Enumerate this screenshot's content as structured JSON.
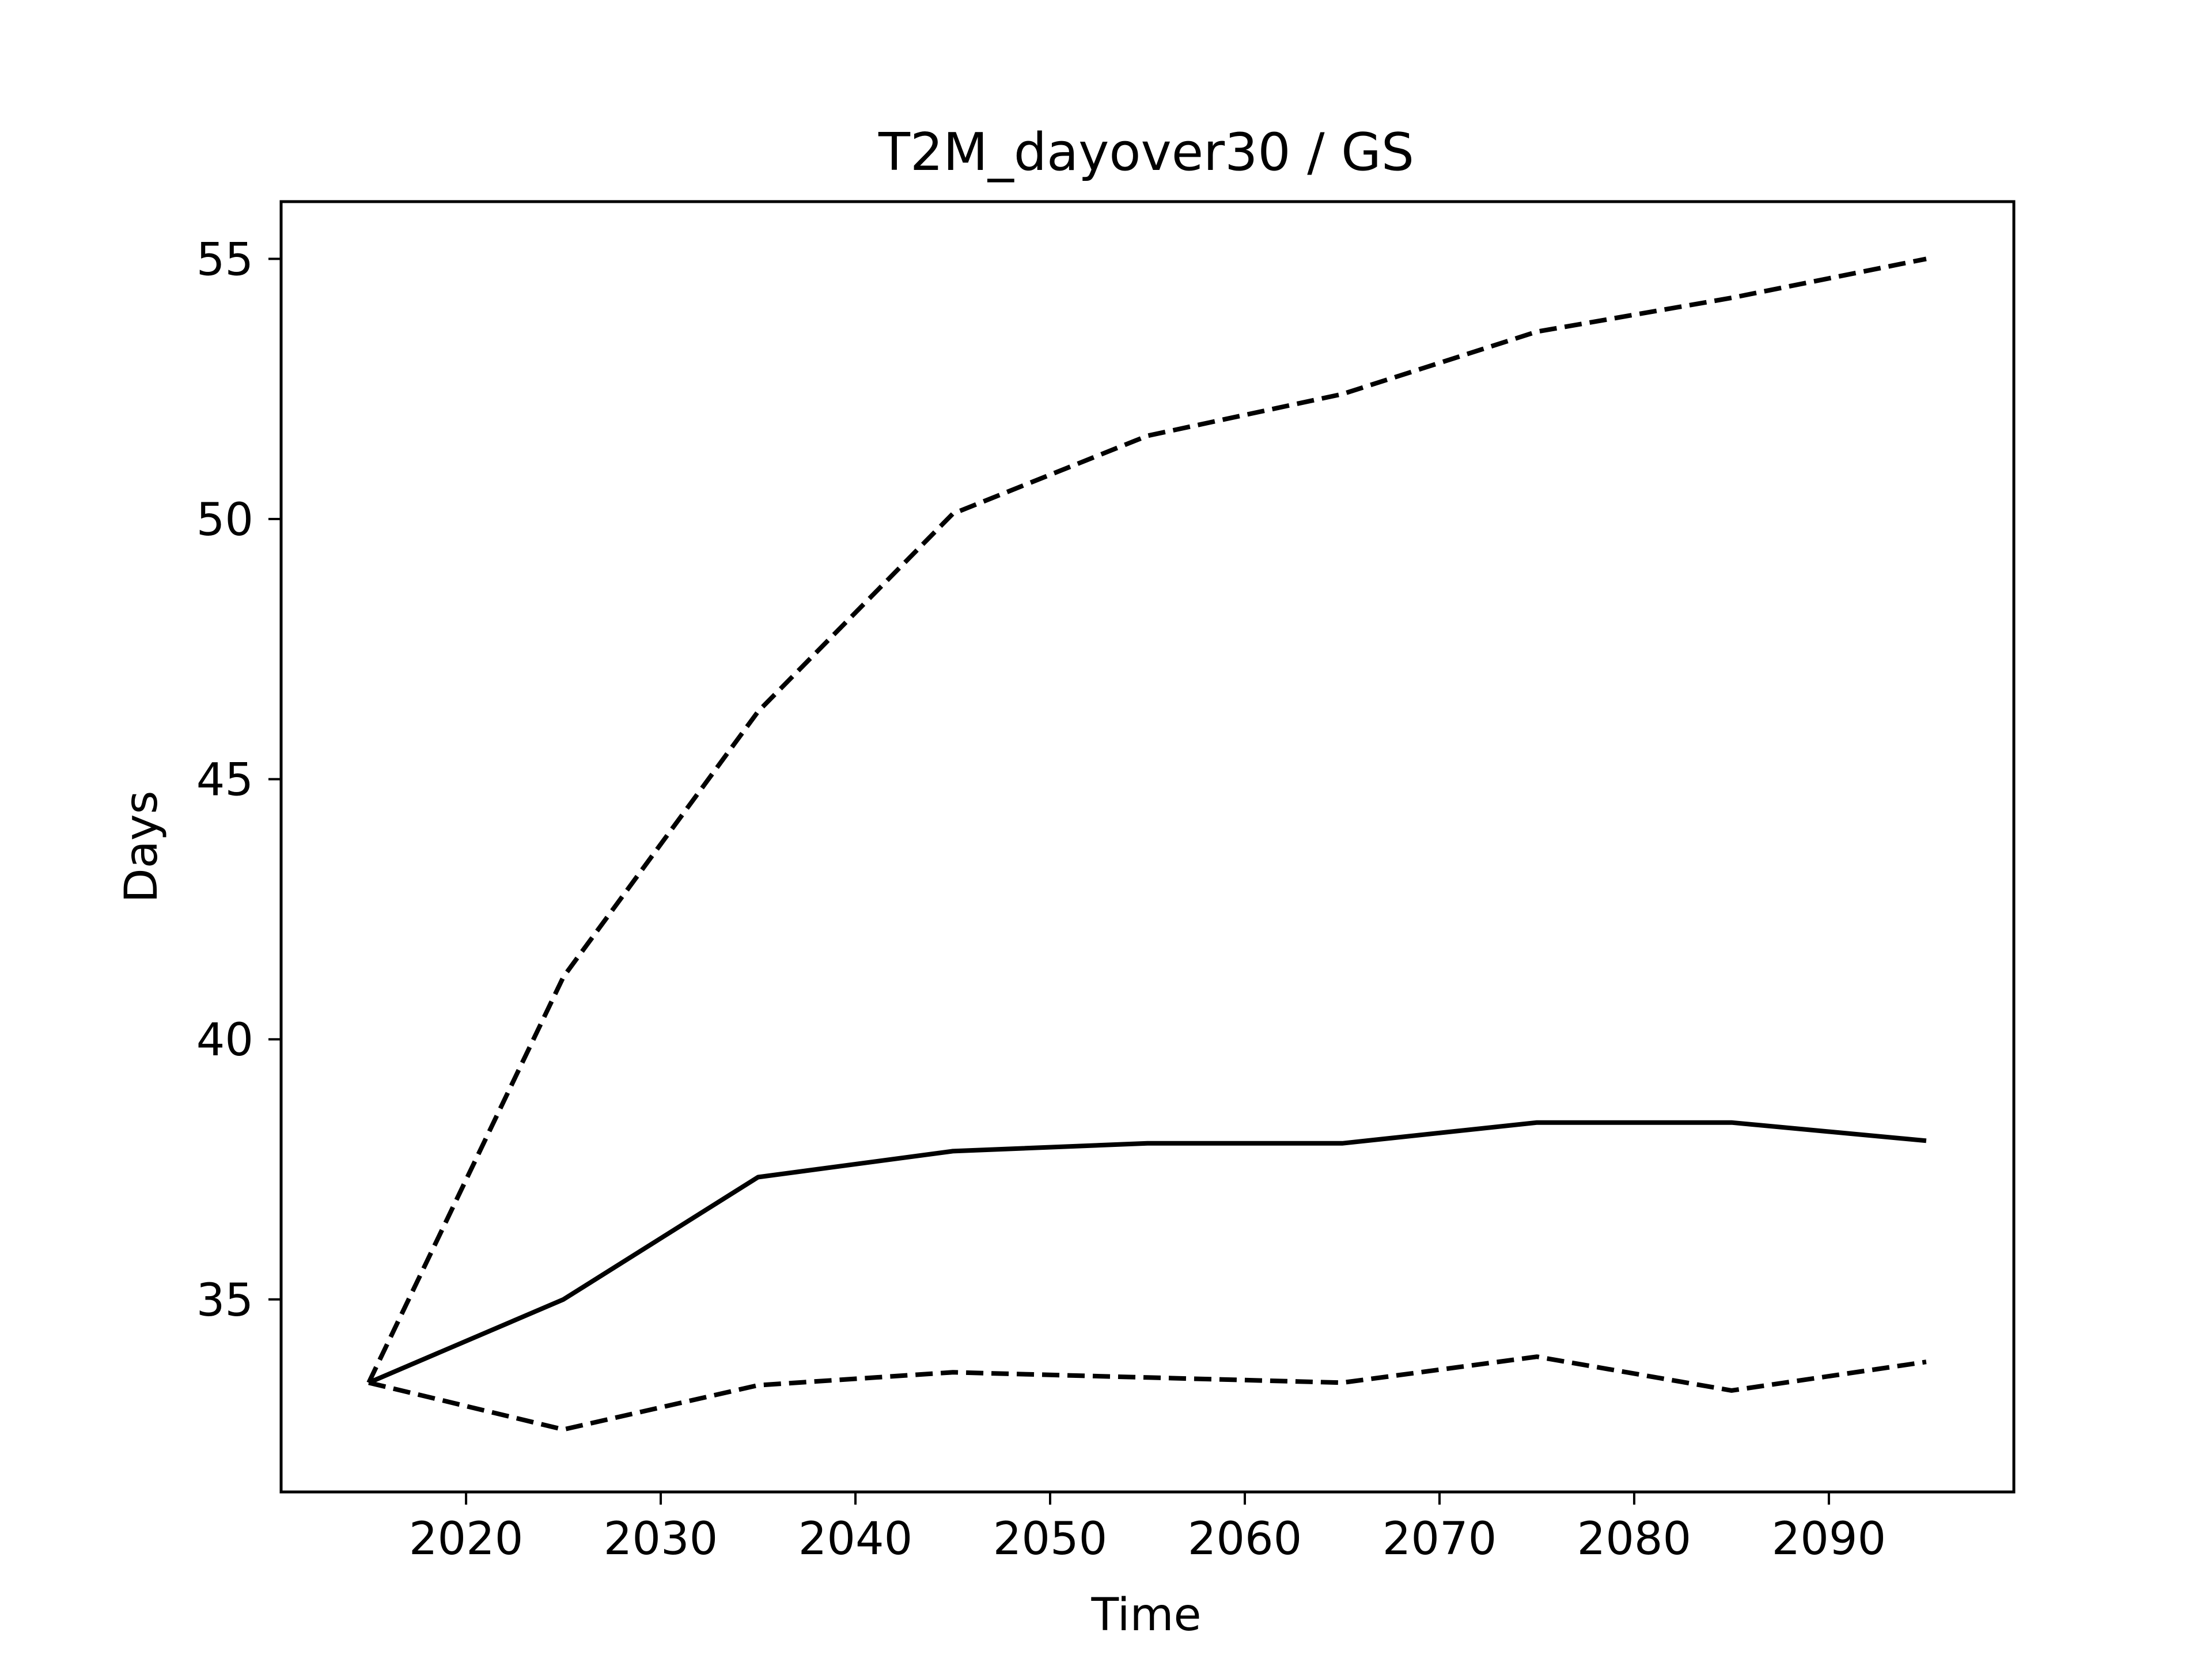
{
  "chart_data": {
    "type": "line",
    "title": "T2M_dayover30 / GS",
    "xlabel": "Time",
    "ylabel": "Days",
    "xlim": [
      2010.5,
      2099.5
    ],
    "ylim": [
      31.3,
      56.1
    ],
    "xticks": [
      2020,
      2030,
      2040,
      2050,
      2060,
      2070,
      2080,
      2090
    ],
    "yticks": [
      35,
      40,
      45,
      50,
      55
    ],
    "grid": false,
    "x": [
      2015,
      2025,
      2035,
      2045,
      2055,
      2065,
      2075,
      2085,
      2095
    ],
    "series": [
      {
        "style": "solid",
        "color": "#000000",
        "values": [
          33.4,
          35.0,
          37.35,
          37.85,
          38.0,
          38.0,
          38.4,
          38.4,
          38.05
        ]
      },
      {
        "style": "dashed",
        "color": "#000000",
        "values": [
          33.4,
          41.2,
          46.3,
          50.1,
          51.6,
          52.4,
          53.6,
          54.25,
          55.0
        ]
      },
      {
        "style": "dashed",
        "color": "#000000",
        "values": [
          33.4,
          32.5,
          33.35,
          33.6,
          33.5,
          33.4,
          33.9,
          33.25,
          33.8
        ]
      }
    ]
  }
}
